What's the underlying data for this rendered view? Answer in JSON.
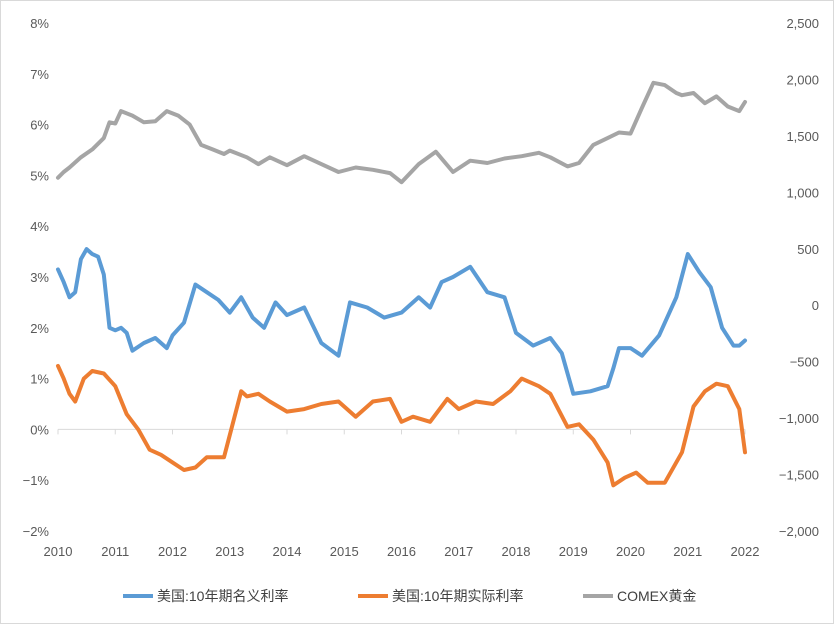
{
  "chart_data": {
    "type": "line",
    "x_axis": {
      "ticks": [
        "2010",
        "2011",
        "2012",
        "2013",
        "2014",
        "2015",
        "2016",
        "2017",
        "2018",
        "2019",
        "2020",
        "2021",
        "2022"
      ],
      "range": [
        2010,
        2022
      ]
    },
    "y_left": {
      "ticks": [
        "8%",
        "7%",
        "6%",
        "5%",
        "4%",
        "3%",
        "2%",
        "1%",
        "0%",
        "−1%",
        "−2%"
      ],
      "values": [
        8,
        7,
        6,
        5,
        4,
        3,
        2,
        1,
        0,
        -1,
        -2
      ],
      "range": [
        -2,
        8
      ],
      "unit": "%"
    },
    "y_right": {
      "ticks": [
        "2,500",
        "2,000",
        "1,500",
        "1,000",
        "500",
        "0",
        "−500",
        "−1,000",
        "−1,500",
        "−2,000"
      ],
      "values": [
        2500,
        2000,
        1500,
        1000,
        500,
        0,
        -500,
        -1000,
        -1500,
        -2000
      ],
      "range": [
        -2000,
        2500
      ]
    },
    "grid": false,
    "legend_position": "bottom",
    "series": [
      {
        "name": "美国:10年期名义利率",
        "axis": "left",
        "color": "#5B9BD5",
        "x": [
          2010.0,
          2010.1,
          2010.2,
          2010.3,
          2010.4,
          2010.5,
          2010.6,
          2010.7,
          2010.8,
          2010.9,
          2011.0,
          2011.1,
          2011.2,
          2011.3,
          2011.5,
          2011.7,
          2011.9,
          2012.0,
          2012.2,
          2012.4,
          2012.6,
          2012.8,
          2013.0,
          2013.2,
          2013.4,
          2013.6,
          2013.8,
          2014.0,
          2014.3,
          2014.6,
          2014.9,
          2015.1,
          2015.4,
          2015.7,
          2016.0,
          2016.3,
          2016.5,
          2016.7,
          2016.9,
          2017.2,
          2017.5,
          2017.8,
          2018.0,
          2018.3,
          2018.6,
          2018.8,
          2019.0,
          2019.3,
          2019.6,
          2019.7,
          2019.8,
          2020.0,
          2020.2,
          2020.5,
          2020.8,
          2021.0,
          2021.2,
          2021.4,
          2021.6,
          2021.8,
          2021.9,
          2022.0
        ],
        "y": [
          3.15,
          2.9,
          2.6,
          2.7,
          3.35,
          3.55,
          3.45,
          3.4,
          3.05,
          2.0,
          1.95,
          2.0,
          1.9,
          1.55,
          1.7,
          1.8,
          1.6,
          1.85,
          2.1,
          2.85,
          2.7,
          2.55,
          2.3,
          2.6,
          2.2,
          2.0,
          2.5,
          2.25,
          2.4,
          1.7,
          1.45,
          2.5,
          2.4,
          2.2,
          2.3,
          2.6,
          2.4,
          2.9,
          3.0,
          3.2,
          2.7,
          2.6,
          1.9,
          1.65,
          1.8,
          1.5,
          0.7,
          0.75,
          0.85,
          1.2,
          1.6,
          1.6,
          1.45,
          1.85,
          2.6,
          3.45,
          3.1,
          2.8,
          2.0,
          1.65,
          1.65,
          1.75
        ]
      },
      {
        "name": "美国:10年期实际利率",
        "axis": "left",
        "color": "#ED7D31",
        "x": [
          2010.0,
          2010.1,
          2010.2,
          2010.3,
          2010.45,
          2010.6,
          2010.8,
          2011.0,
          2011.2,
          2011.4,
          2011.6,
          2011.8,
          2012.0,
          2012.2,
          2012.4,
          2012.6,
          2012.9,
          2013.2,
          2013.3,
          2013.5,
          2013.7,
          2014.0,
          2014.3,
          2014.6,
          2014.9,
          2015.2,
          2015.5,
          2015.8,
          2016.0,
          2016.2,
          2016.5,
          2016.8,
          2017.0,
          2017.3,
          2017.6,
          2017.9,
          2018.1,
          2018.4,
          2018.6,
          2018.9,
          2019.1,
          2019.35,
          2019.6,
          2019.7,
          2019.9,
          2020.1,
          2020.3,
          2020.6,
          2020.9,
          2021.1,
          2021.3,
          2021.5,
          2021.7,
          2021.9,
          2022.0
        ],
        "y": [
          1.25,
          1.0,
          0.7,
          0.55,
          1.0,
          1.15,
          1.1,
          0.85,
          0.3,
          0.0,
          -0.4,
          -0.5,
          -0.65,
          -0.8,
          -0.75,
          -0.55,
          -0.55,
          0.75,
          0.65,
          0.7,
          0.55,
          0.35,
          0.4,
          0.5,
          0.55,
          0.25,
          0.55,
          0.6,
          0.15,
          0.25,
          0.15,
          0.6,
          0.4,
          0.55,
          0.5,
          0.75,
          1.0,
          0.85,
          0.7,
          0.05,
          0.1,
          -0.2,
          -0.65,
          -1.1,
          -0.95,
          -0.85,
          -1.05,
          -1.05,
          -0.45,
          0.45,
          0.75,
          0.9,
          0.85,
          0.4,
          -0.45
        ]
      },
      {
        "name": "COMEX黄金",
        "axis": "right",
        "color": "#A5A5A5",
        "x": [
          2010.0,
          2010.1,
          2010.2,
          2010.4,
          2010.6,
          2010.8,
          2010.9,
          2011.0,
          2011.1,
          2011.3,
          2011.5,
          2011.7,
          2011.9,
          2012.1,
          2012.3,
          2012.5,
          2012.7,
          2012.9,
          2013.0,
          2013.3,
          2013.5,
          2013.7,
          2014.0,
          2014.3,
          2014.6,
          2014.9,
          2015.2,
          2015.5,
          2015.8,
          2016.0,
          2016.3,
          2016.6,
          2016.9,
          2017.2,
          2017.5,
          2017.8,
          2018.1,
          2018.4,
          2018.6,
          2018.9,
          2019.1,
          2019.35,
          2019.6,
          2019.8,
          2020.0,
          2020.2,
          2020.4,
          2020.6,
          2020.8,
          2020.9,
          2021.1,
          2021.3,
          2021.5,
          2021.7,
          2021.9,
          2022.0
        ],
        "y": [
          1130,
          1180,
          1220,
          1310,
          1380,
          1480,
          1620,
          1610,
          1720,
          1680,
          1620,
          1630,
          1720,
          1680,
          1600,
          1420,
          1380,
          1340,
          1370,
          1310,
          1250,
          1310,
          1240,
          1320,
          1250,
          1180,
          1220,
          1200,
          1170,
          1090,
          1250,
          1360,
          1180,
          1280,
          1260,
          1300,
          1320,
          1350,
          1310,
          1230,
          1260,
          1420,
          1480,
          1530,
          1520,
          1750,
          1970,
          1950,
          1880,
          1860,
          1880,
          1790,
          1850,
          1760,
          1720,
          1800
        ]
      }
    ]
  }
}
